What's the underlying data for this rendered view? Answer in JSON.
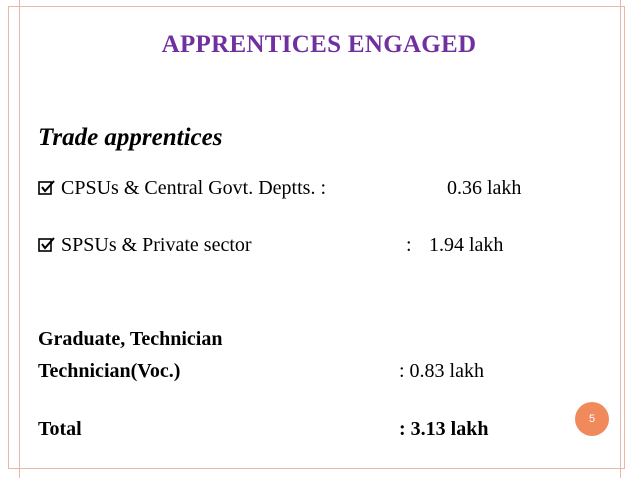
{
  "slide": {
    "title": "APPRENTICES ENGAGED",
    "subheading": "Trade apprentices",
    "bullets": [
      {
        "label": "CPSUs & Central Govt. Deptts. :",
        "value": "0.36 lakh",
        "icon": "checkbox-bullet-icon"
      },
      {
        "label": "SPSUs & Private sector",
        "separator": ":",
        "value": "1.94 lakh",
        "icon": "checkbox-bullet-icon"
      }
    ],
    "graduate": {
      "line1": "Graduate, Technician",
      "line2": "Technician(Voc.)",
      "value": ": 0.83 lakh"
    },
    "total": {
      "label": "Total",
      "value": ": 3.13 lakh"
    },
    "page_number": "5",
    "colors": {
      "title": "#7030a0",
      "frame": "#e8b7a6",
      "badge": "#f08a5d"
    }
  }
}
